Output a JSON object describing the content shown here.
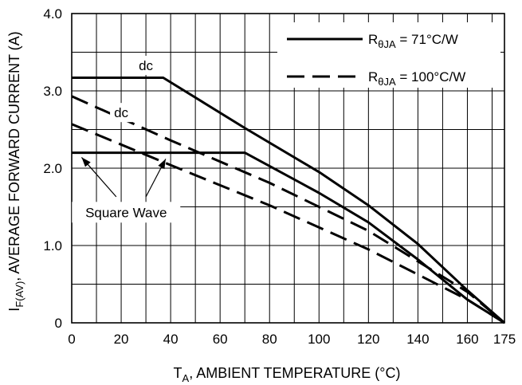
{
  "chart_data": {
    "type": "line",
    "xlabel": "T_A, AMBIENT TEMPERATURE (°C)",
    "xlabel_parts": {
      "main": "T",
      "sub": "A",
      "rest": ", AMBIENT TEMPERATURE (°C)"
    },
    "ylabel": "I_F(AV), AVERAGE FORWARD CURRENT (A)",
    "ylabel_parts": {
      "main": "I",
      "sub": "F(AV)",
      "rest": ", AVERAGE FORWARD CURRENT (A)"
    },
    "xlim": [
      0,
      175
    ],
    "ylim": [
      0,
      4.0
    ],
    "x_ticks": [
      0,
      20,
      40,
      60,
      80,
      100,
      120,
      140,
      160,
      175
    ],
    "x_tick_labels": [
      "0",
      "20",
      "40",
      "60",
      "80",
      "100",
      "120",
      "140",
      "160",
      "175"
    ],
    "y_ticks": [
      0,
      1.0,
      2.0,
      3.0,
      4.0
    ],
    "y_tick_labels": [
      "0",
      "1.0",
      "2.0",
      "3.0",
      "4.0"
    ],
    "grid": true,
    "legend_position": "top-right",
    "legend": [
      {
        "label_main": "R",
        "label_sub": "θJA",
        "label_rest": " = 71°C/W",
        "style": "solid"
      },
      {
        "label_main": "R",
        "label_sub": "θJA",
        "label_rest": " = 100°C/W",
        "style": "dashed"
      }
    ],
    "series": [
      {
        "style": "solid",
        "points": [
          [
            0,
            3.17
          ],
          [
            37,
            3.17
          ],
          [
            70,
            2.52
          ],
          [
            100,
            1.95
          ],
          [
            120,
            1.52
          ],
          [
            140,
            1.02
          ],
          [
            160,
            0.42
          ],
          [
            175,
            0
          ]
        ]
      },
      {
        "style": "solid",
        "points": [
          [
            0,
            2.2
          ],
          [
            70,
            2.2
          ],
          [
            100,
            1.68
          ],
          [
            120,
            1.3
          ],
          [
            140,
            0.82
          ],
          [
            160,
            0.3
          ],
          [
            175,
            0
          ]
        ]
      },
      {
        "style": "dashed",
        "points": [
          [
            0,
            2.93
          ],
          [
            40,
            2.36
          ],
          [
            80,
            1.81
          ],
          [
            120,
            1.19
          ],
          [
            160,
            0.4
          ],
          [
            175,
            0
          ]
        ]
      },
      {
        "style": "dashed",
        "points": [
          [
            0,
            2.57
          ],
          [
            40,
            2.04
          ],
          [
            80,
            1.52
          ],
          [
            120,
            0.95
          ],
          [
            160,
            0.3
          ],
          [
            175,
            0
          ]
        ]
      }
    ],
    "annotations": [
      {
        "text": "dc",
        "x": 30,
        "y": 3.33
      },
      {
        "text": "dc",
        "x": 20,
        "y": 2.72
      },
      {
        "text": "Square Wave",
        "x": 22,
        "y": 1.43
      }
    ],
    "arrows": [
      {
        "from": [
          18,
          1.63
        ],
        "to": [
          4,
          2.14
        ]
      },
      {
        "from": [
          30,
          1.63
        ],
        "to": [
          38,
          2.12
        ]
      }
    ]
  }
}
